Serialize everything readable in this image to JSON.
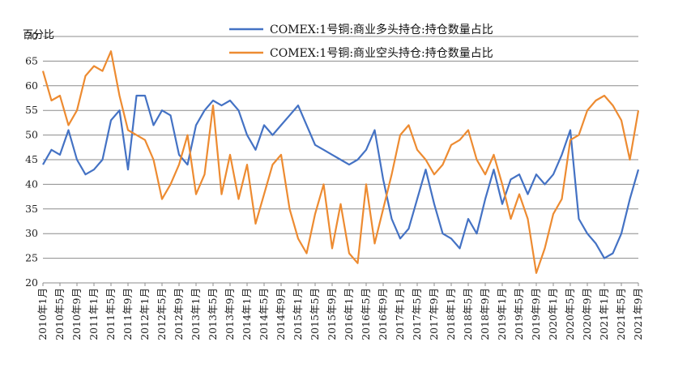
{
  "chart_data": {
    "type": "line",
    "ylabel": "百分比",
    "ylim": [
      20,
      70
    ],
    "yticks": [
      20,
      25,
      30,
      35,
      40,
      45,
      50,
      55,
      60,
      65,
      70
    ],
    "xlim": [
      "2010-01",
      "2021-09"
    ],
    "grid": "horizontal",
    "legend_position": "top",
    "x_tick_labels": [
      "2010年1月",
      "2010年5月",
      "2010年9月",
      "2011年1月",
      "2011年5月",
      "2011年9月",
      "2012年1月",
      "2012年5月",
      "2012年9月",
      "2013年1月",
      "2013年5月",
      "2013年9月",
      "2014年1月",
      "2014年5月",
      "2014年9月",
      "2015年1月",
      "2015年5月",
      "2015年9月",
      "2016年1月",
      "2016年5月",
      "2016年9月",
      "2017年1月",
      "2017年5月",
      "2017年9月",
      "2018年1月",
      "2018年5月",
      "2018年9月",
      "2019年1月",
      "2019年5月",
      "2019年9月",
      "2020年1月",
      "2020年5月",
      "2020年9月",
      "2021年1月",
      "2021年5月",
      "2021年9月"
    ],
    "series": [
      {
        "name": "COMEX:1号铜:商业多头持仓:持仓数量占比",
        "color": "#4472c4",
        "x": [
          "2010-01",
          "2010-03",
          "2010-05",
          "2010-07",
          "2010-09",
          "2010-11",
          "2011-01",
          "2011-03",
          "2011-05",
          "2011-07",
          "2011-09",
          "2011-11",
          "2012-01",
          "2012-03",
          "2012-05",
          "2012-07",
          "2012-09",
          "2012-11",
          "2013-01",
          "2013-03",
          "2013-05",
          "2013-07",
          "2013-09",
          "2013-11",
          "2014-01",
          "2014-03",
          "2014-05",
          "2014-07",
          "2014-09",
          "2014-11",
          "2015-01",
          "2015-03",
          "2015-05",
          "2015-07",
          "2015-09",
          "2015-11",
          "2016-01",
          "2016-03",
          "2016-05",
          "2016-07",
          "2016-09",
          "2016-11",
          "2017-01",
          "2017-03",
          "2017-05",
          "2017-07",
          "2017-09",
          "2017-11",
          "2018-01",
          "2018-03",
          "2018-05",
          "2018-07",
          "2018-09",
          "2018-11",
          "2019-01",
          "2019-03",
          "2019-05",
          "2019-07",
          "2019-09",
          "2019-11",
          "2020-01",
          "2020-03",
          "2020-05",
          "2020-07",
          "2020-09",
          "2020-11",
          "2021-01",
          "2021-03",
          "2021-05",
          "2021-07",
          "2021-09"
        ],
        "values": [
          44,
          47,
          46,
          51,
          45,
          42,
          43,
          45,
          53,
          55,
          43,
          58,
          58,
          52,
          55,
          54,
          46,
          44,
          52,
          55,
          57,
          56,
          57,
          55,
          50,
          47,
          52,
          50,
          52,
          54,
          56,
          52,
          48,
          47,
          46,
          45,
          44,
          45,
          47,
          51,
          41,
          33,
          29,
          31,
          37,
          43,
          36,
          30,
          29,
          27,
          33,
          30,
          37,
          43,
          36,
          41,
          42,
          38,
          42,
          40,
          42,
          46,
          51,
          33,
          30,
          28,
          25,
          26,
          30,
          37,
          43
        ]
      },
      {
        "name": "COMEX:1号铜:商业空头持仓:持仓数量占比",
        "color": "#ed8b31",
        "x": [
          "2010-01",
          "2010-03",
          "2010-05",
          "2010-07",
          "2010-09",
          "2010-11",
          "2011-01",
          "2011-03",
          "2011-05",
          "2011-07",
          "2011-09",
          "2011-11",
          "2012-01",
          "2012-03",
          "2012-05",
          "2012-07",
          "2012-09",
          "2012-11",
          "2013-01",
          "2013-03",
          "2013-05",
          "2013-07",
          "2013-09",
          "2013-11",
          "2014-01",
          "2014-03",
          "2014-05",
          "2014-07",
          "2014-09",
          "2014-11",
          "2015-01",
          "2015-03",
          "2015-05",
          "2015-07",
          "2015-09",
          "2015-11",
          "2016-01",
          "2016-03",
          "2016-05",
          "2016-07",
          "2016-09",
          "2016-11",
          "2017-01",
          "2017-03",
          "2017-05",
          "2017-07",
          "2017-09",
          "2017-11",
          "2018-01",
          "2018-03",
          "2018-05",
          "2018-07",
          "2018-09",
          "2018-11",
          "2019-01",
          "2019-03",
          "2019-05",
          "2019-07",
          "2019-09",
          "2019-11",
          "2020-01",
          "2020-03",
          "2020-05",
          "2020-07",
          "2020-09",
          "2020-11",
          "2021-01",
          "2021-03",
          "2021-05",
          "2021-07",
          "2021-09"
        ],
        "values": [
          63,
          57,
          58,
          52,
          55,
          62,
          64,
          63,
          67,
          58,
          51,
          50,
          49,
          45,
          37,
          40,
          44,
          50,
          38,
          42,
          56,
          38,
          46,
          37,
          44,
          32,
          38,
          44,
          46,
          35,
          29,
          26,
          34,
          40,
          27,
          36,
          26,
          24,
          40,
          28,
          35,
          42,
          50,
          52,
          47,
          45,
          42,
          44,
          48,
          49,
          51,
          45,
          42,
          46,
          40,
          33,
          38,
          33,
          22,
          27,
          34,
          37,
          49,
          50,
          55,
          57,
          58,
          56,
          53,
          45,
          55
        ]
      }
    ]
  }
}
